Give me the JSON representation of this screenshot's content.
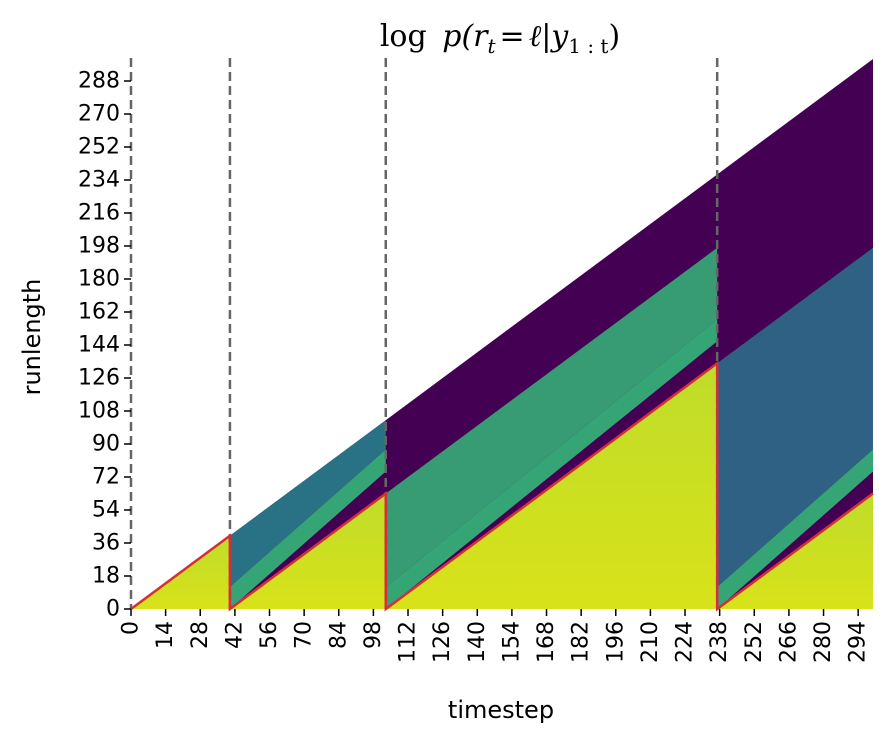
{
  "chart_data": {
    "type": "heatmap",
    "title": "log p(r_t = ℓ | y_{1:t})",
    "title_parts": {
      "log": "log",
      "p_open": "p(",
      "r": "r",
      "t_sub": "t",
      "eq": "=",
      "ell": "ℓ",
      "bar": "|",
      "y": "y",
      "y_sub": "1 : t",
      "close": ")"
    },
    "xlabel": "timestep",
    "ylabel": "runlength",
    "xlim": [
      0,
      300
    ],
    "ylim": [
      0,
      300
    ],
    "x_ticks": [
      0,
      14,
      28,
      42,
      56,
      70,
      84,
      98,
      112,
      126,
      140,
      154,
      168,
      182,
      196,
      210,
      224,
      238,
      252,
      266,
      280,
      294
    ],
    "y_ticks": [
      0,
      18,
      36,
      54,
      72,
      90,
      108,
      126,
      144,
      162,
      180,
      198,
      216,
      234,
      252,
      270,
      288
    ],
    "changepoints": [
      0,
      40,
      103,
      237
    ],
    "segments": [
      {
        "start": 0,
        "end": 40
      },
      {
        "start": 40,
        "end": 103
      },
      {
        "start": 103,
        "end": 237
      },
      {
        "start": 237,
        "end": 300
      }
    ],
    "map_line_color": "#d62d3a",
    "changepoint_line_color": "#666666",
    "colormap": "viridis",
    "colors": {
      "high": "#d2e21b",
      "mid": "#35b779",
      "low": "#440154"
    }
  }
}
